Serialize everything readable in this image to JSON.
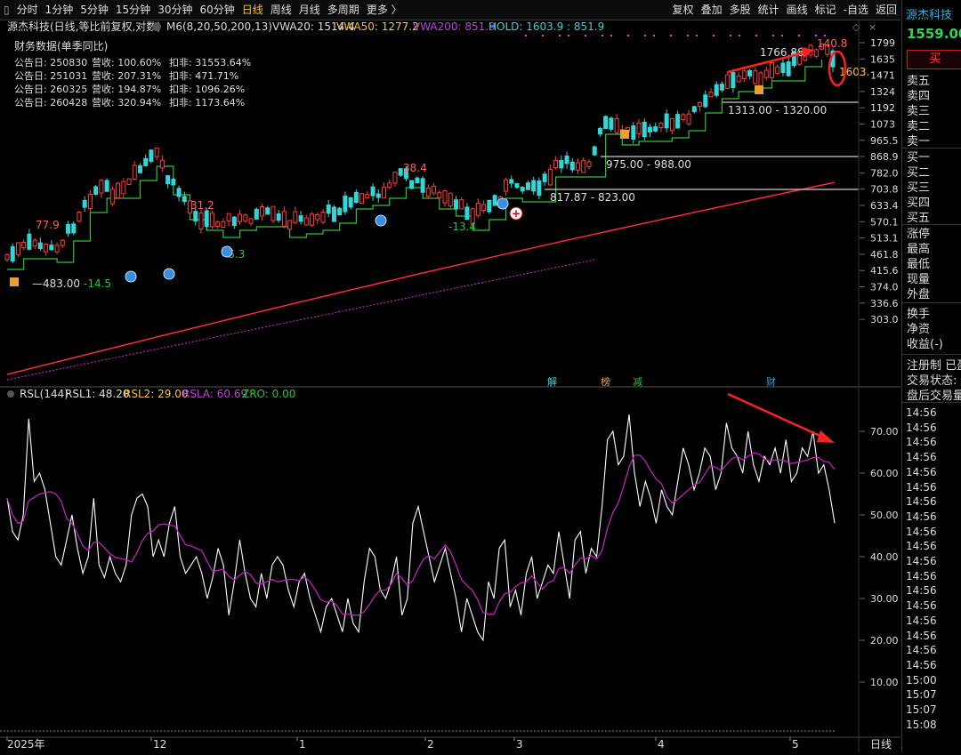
{
  "toolbar": {
    "left": [
      "分时",
      "1分钟",
      "5分钟",
      "15分钟",
      "30分钟",
      "60分钟",
      "日线",
      "周线",
      "月线",
      "多周期",
      "更多 〉"
    ],
    "active": "日线",
    "right": [
      "复权",
      "叠加",
      "多股",
      "统计",
      "画线",
      "标记",
      "-自选",
      "返回"
    ]
  },
  "header": {
    "stock": "源杰科技(日线,等比前复权,对数)",
    "m6": "M6(8,20,50,200,13)",
    "vwa20": "VWA20: 1514.4",
    "vwa50": "VWA50: 1277.2",
    "vwa200": "VWA200: 851.9",
    "hold": "HOLD: 1603.9 : 851.9"
  },
  "finance": {
    "title": "财务数据(单季同比)",
    "rows": [
      {
        "date": "公告日: 250830",
        "rev": "营收: 100.60%",
        "np": "扣非: 31553.64%"
      },
      {
        "date": "公告日: 251031",
        "rev": "营收: 207.31%",
        "np": "扣非: 471.71%"
      },
      {
        "date": "公告日: 260325",
        "rev": "营收: 194.87%",
        "np": "扣非: 1096.26%"
      },
      {
        "date": "公告日: 260428",
        "rev": "营收: 320.94%",
        "np": "扣非: 1173.64%"
      }
    ]
  },
  "price_axis": [
    "1799",
    "1635",
    "1471",
    "1324",
    "1192",
    "1073",
    "965.5",
    "868.9",
    "782.0",
    "703.8",
    "633.4",
    "570.1",
    "513.1",
    "461.8",
    "415.6",
    "374.0",
    "336.6",
    "303.0"
  ],
  "annotations": {
    "low": "483.00",
    "labels": [
      "77.9",
      "-14.5",
      "31.2",
      "-5.3",
      "38.4",
      "-13.4",
      "140.8",
      "1766.88",
      "1603."
    ],
    "zones": [
      "817.87 - 823.00",
      "975.00 - 988.00",
      "1313.00 - 1320.00"
    ],
    "events": [
      "解",
      "榜",
      "减",
      "财"
    ]
  },
  "indicator": {
    "name": "RSL(144)",
    "rsl1": "RSL1: 48.20",
    "rsl2": "RSL2: 29.00",
    "rsla": "RSLA: 60.69",
    "zro": "ZRO: 0.00",
    "axis": [
      "70.00",
      "60.00",
      "50.00",
      "40.00",
      "30.00",
      "20.00",
      "10.00"
    ]
  },
  "time_axis": [
    "2025年",
    "12",
    "1",
    "2",
    "3",
    "4",
    "5"
  ],
  "period_label": "日线",
  "colors": {
    "up": "#ff3b3b",
    "down": "#33d6d6",
    "ma": "#2ec23a",
    "long_ma": "#ff2a3a",
    "rsl": "#ffffff",
    "rsla": "#c020c0",
    "arrow": "#ff2020"
  },
  "sidebar": {
    "name": "源杰科技",
    "price": "1559.00",
    "buy": "买",
    "sell": [
      "卖五",
      "卖四",
      "卖三",
      "卖二",
      "卖一"
    ],
    "buys": [
      "买一",
      "买二",
      "买三",
      "买四",
      "买五"
    ],
    "stats": [
      "涨停",
      "最高",
      "最低",
      "现量",
      "外盘"
    ],
    "stats2": [
      "换手",
      "净资",
      "收益(-)"
    ],
    "info": [
      "注册制 已盈",
      "交易状态: 连",
      "盘后交易量"
    ],
    "times": [
      "14:56",
      "14:56",
      "14:56",
      "14:56",
      "14:56",
      "14:56",
      "14:56",
      "14:56",
      "14:56",
      "14:56",
      "14:56",
      "14:56",
      "14:56",
      "14:56",
      "14:56",
      "14:56",
      "14:56",
      "14:56",
      "15:00",
      "15:07",
      "15:07",
      "15:08"
    ]
  }
}
